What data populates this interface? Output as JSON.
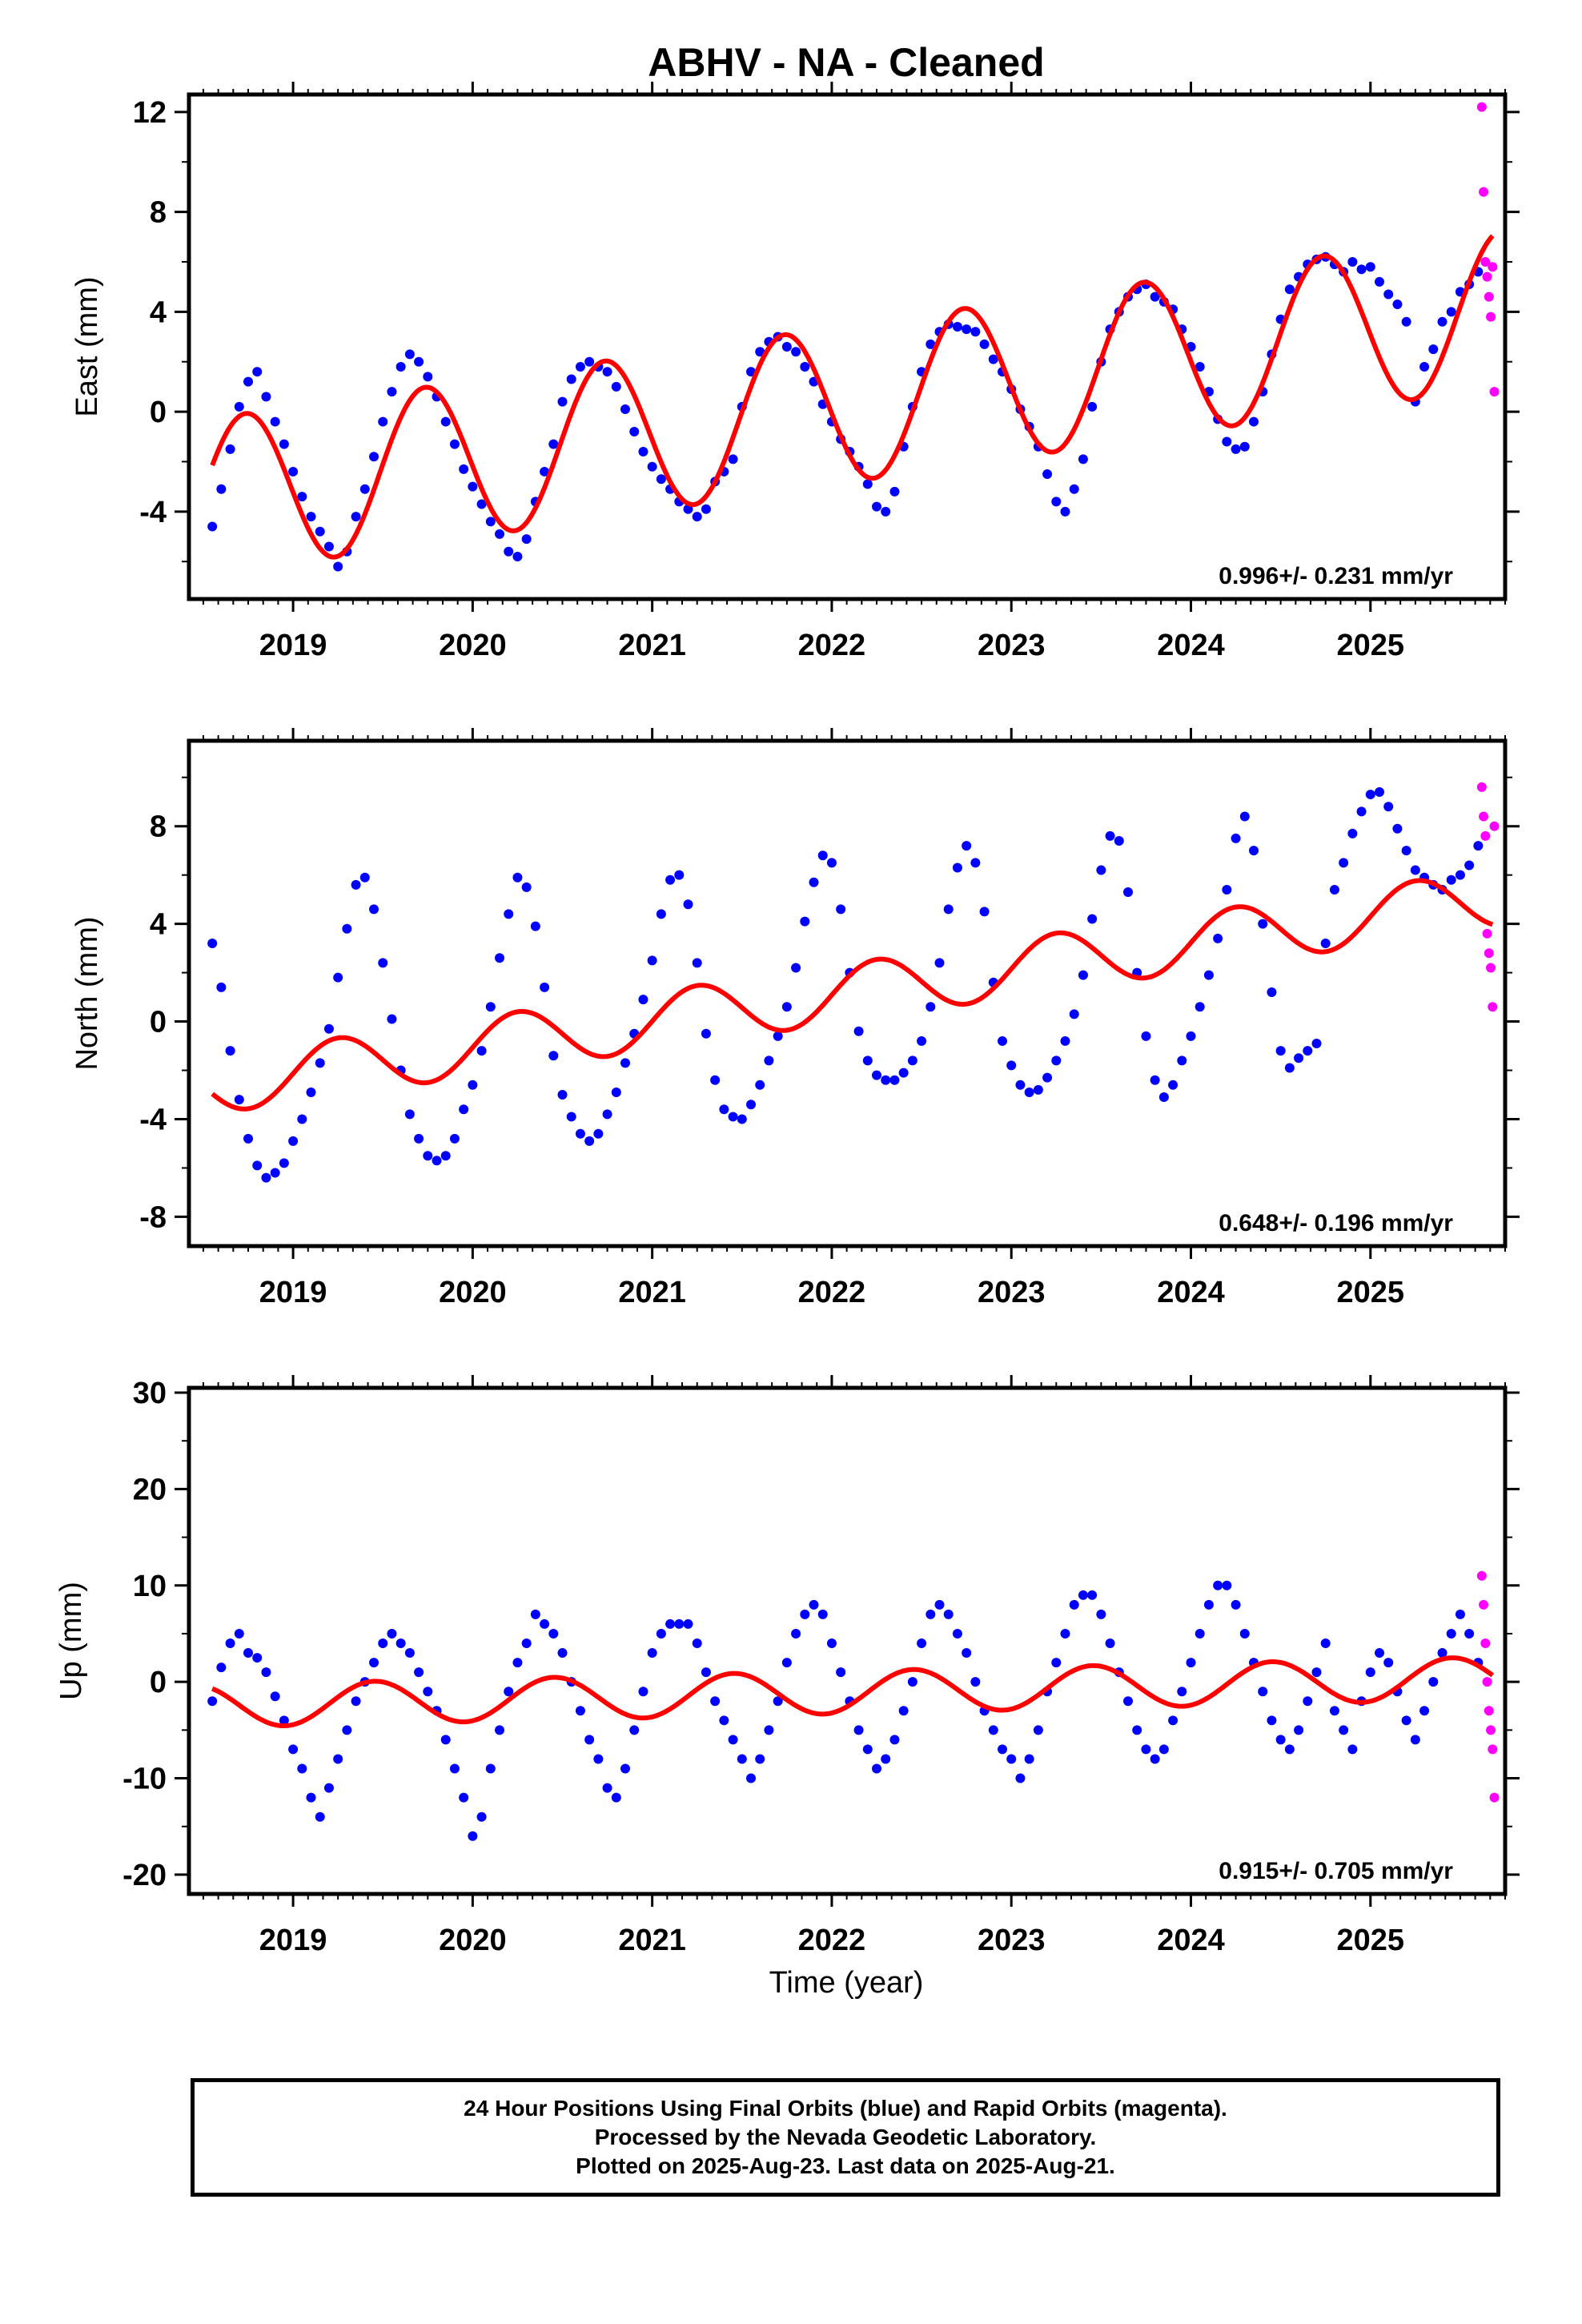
{
  "title": "ABHV  - NA - Cleaned",
  "xlabel": "Time (year)",
  "footer": {
    "line1": "24 Hour Positions Using Final Orbits (blue) and Rapid Orbits (magenta).",
    "line2": "Processed by the Nevada Geodetic Laboratory.",
    "line3": "Plotted on 2025-Aug-23. Last data on 2025-Aug-21."
  },
  "colors": {
    "final": "#0000ff",
    "rapid": "#ff00ff",
    "fit": "#ff0000",
    "axis": "#000000"
  },
  "chart_data": [
    {
      "type": "scatter",
      "ylabel": "East (mm)",
      "rate_label": "0.996+/- 0.231 mm/yr",
      "xlim": [
        2018.42,
        2025.75
      ],
      "ylim": [
        -7.5,
        12.7
      ],
      "yticks": [
        -4,
        0,
        4,
        8,
        12
      ],
      "xticks": [
        2019,
        2020,
        2021,
        2022,
        2023,
        2024,
        2025
      ],
      "series": [
        {
          "x": [
            2018.55,
            2018.6,
            2018.65,
            2018.7,
            2018.75,
            2018.8,
            2018.85,
            2018.9,
            2018.95,
            2019.0,
            2019.05,
            2019.1,
            2019.15,
            2019.2,
            2019.25,
            2019.3,
            2019.35,
            2019.4,
            2019.45,
            2019.5,
            2019.55,
            2019.6,
            2019.65,
            2019.7,
            2019.75,
            2019.8,
            2019.85,
            2019.9,
            2019.95,
            2020.0,
            2020.05,
            2020.1,
            2020.15,
            2020.2,
            2020.25,
            2020.3,
            2020.35,
            2020.4,
            2020.45,
            2020.5,
            2020.55,
            2020.6,
            2020.65,
            2020.7,
            2020.75,
            2020.8,
            2020.85,
            2020.9,
            2020.95,
            2021.0,
            2021.05,
            2021.1,
            2021.15,
            2021.2,
            2021.25,
            2021.3,
            2021.35,
            2021.4,
            2021.45,
            2021.5,
            2021.55,
            2021.6,
            2021.65,
            2021.7,
            2021.75,
            2021.8,
            2021.85,
            2021.9,
            2021.95,
            2022.0,
            2022.05,
            2022.1,
            2022.15,
            2022.2,
            2022.25,
            2022.3,
            2022.35,
            2022.4,
            2022.45,
            2022.5,
            2022.55,
            2022.6,
            2022.65,
            2022.7,
            2022.75,
            2022.8,
            2022.85,
            2022.9,
            2022.95,
            2023.0,
            2023.05,
            2023.1,
            2023.15,
            2023.2,
            2023.25,
            2023.3,
            2023.35,
            2023.4,
            2023.45,
            2023.5,
            2023.55,
            2023.6,
            2023.65,
            2023.7,
            2023.75,
            2023.8,
            2023.85,
            2023.9,
            2023.95,
            2024.0,
            2024.05,
            2024.1,
            2024.15,
            2024.2,
            2024.25,
            2024.3,
            2024.35,
            2024.4,
            2024.45,
            2024.5,
            2024.55,
            2024.6,
            2024.65,
            2024.7,
            2024.75,
            2024.8,
            2024.85,
            2024.9,
            2024.95,
            2025.0,
            2025.05,
            2025.1,
            2025.15,
            2025.2,
            2025.25,
            2025.3,
            2025.35,
            2025.4,
            2025.45,
            2025.5,
            2025.55,
            2025.6
          ],
          "y": [
            -4.6,
            -3.1,
            -1.5,
            0.2,
            1.2,
            1.6,
            0.6,
            -0.4,
            -1.3,
            -2.4,
            -3.4,
            -4.2,
            -4.8,
            -5.4,
            -6.2,
            -5.6,
            -4.2,
            -3.1,
            -1.8,
            -0.4,
            0.8,
            1.8,
            2.3,
            2.0,
            1.4,
            0.6,
            -0.4,
            -1.3,
            -2.3,
            -3.0,
            -3.7,
            -4.4,
            -4.9,
            -5.6,
            -5.8,
            -5.1,
            -3.6,
            -2.4,
            -1.3,
            0.4,
            1.3,
            1.8,
            2.0,
            1.8,
            1.6,
            1.0,
            0.1,
            -0.8,
            -1.6,
            -2.2,
            -2.7,
            -3.1,
            -3.6,
            -3.9,
            -4.2,
            -3.9,
            -2.8,
            -2.4,
            -1.9,
            0.2,
            1.6,
            2.4,
            2.8,
            3.0,
            2.6,
            2.4,
            1.8,
            1.2,
            0.3,
            -0.4,
            -1.1,
            -1.6,
            -2.2,
            -2.9,
            -3.8,
            -4.0,
            -3.2,
            -1.4,
            0.2,
            1.6,
            2.7,
            3.2,
            3.5,
            3.4,
            3.3,
            3.2,
            2.7,
            2.1,
            1.6,
            0.9,
            0.1,
            -0.6,
            -1.4,
            -2.5,
            -3.6,
            -4.0,
            -3.1,
            -1.9,
            0.2,
            2.0,
            3.3,
            4.0,
            4.6,
            4.9,
            5.1,
            4.6,
            4.4,
            4.1,
            3.3,
            2.6,
            1.8,
            0.8,
            -0.3,
            -1.2,
            -1.5,
            -1.4,
            -0.4,
            0.8,
            2.3,
            3.7,
            4.9,
            5.4,
            5.9,
            6.1,
            6.2,
            5.9,
            5.6,
            6.0,
            5.7,
            5.8,
            5.2,
            4.7,
            4.3,
            3.6,
            0.4,
            1.8,
            2.5,
            3.6,
            4.0,
            4.8,
            5.1,
            5.6
          ]
        },
        {
          "x": [
            2025.62,
            2025.63,
            2025.64,
            2025.65,
            2025.66,
            2025.67,
            2025.68,
            2025.69
          ],
          "y": [
            12.2,
            8.8,
            6.0,
            5.4,
            4.6,
            3.8,
            5.8,
            0.8
          ]
        }
      ]
    },
    {
      "type": "scatter",
      "ylabel": "North (mm)",
      "rate_label": "0.648+/- 0.196 mm/yr",
      "xlim": [
        2018.42,
        2025.75
      ],
      "ylim": [
        -9.2,
        11.5
      ],
      "yticks": [
        -8,
        -4,
        0,
        4,
        8
      ],
      "xticks": [
        2019,
        2020,
        2021,
        2022,
        2023,
        2024,
        2025
      ],
      "series": [
        {
          "x": [
            2018.55,
            2018.6,
            2018.65,
            2018.7,
            2018.75,
            2018.8,
            2018.85,
            2018.9,
            2018.95,
            2019.0,
            2019.05,
            2019.1,
            2019.15,
            2019.2,
            2019.25,
            2019.3,
            2019.35,
            2019.4,
            2019.45,
            2019.5,
            2019.55,
            2019.6,
            2019.65,
            2019.7,
            2019.75,
            2019.8,
            2019.85,
            2019.9,
            2019.95,
            2020.0,
            2020.05,
            2020.1,
            2020.15,
            2020.2,
            2020.25,
            2020.3,
            2020.35,
            2020.4,
            2020.45,
            2020.5,
            2020.55,
            2020.6,
            2020.65,
            2020.7,
            2020.75,
            2020.8,
            2020.85,
            2020.9,
            2020.95,
            2021.0,
            2021.05,
            2021.1,
            2021.15,
            2021.2,
            2021.25,
            2021.3,
            2021.35,
            2021.4,
            2021.45,
            2021.5,
            2021.55,
            2021.6,
            2021.65,
            2021.7,
            2021.75,
            2021.8,
            2021.85,
            2021.9,
            2021.95,
            2022.0,
            2022.05,
            2022.1,
            2022.15,
            2022.2,
            2022.25,
            2022.3,
            2022.35,
            2022.4,
            2022.45,
            2022.5,
            2022.55,
            2022.6,
            2022.65,
            2022.7,
            2022.75,
            2022.8,
            2022.85,
            2022.9,
            2022.95,
            2023.0,
            2023.05,
            2023.1,
            2023.15,
            2023.2,
            2023.25,
            2023.3,
            2023.35,
            2023.4,
            2023.45,
            2023.5,
            2023.55,
            2023.6,
            2023.65,
            2023.7,
            2023.75,
            2023.8,
            2023.85,
            2023.9,
            2023.95,
            2024.0,
            2024.05,
            2024.1,
            2024.15,
            2024.2,
            2024.25,
            2024.3,
            2024.35,
            2024.4,
            2024.45,
            2024.5,
            2024.55,
            2024.6,
            2024.65,
            2024.7,
            2024.75,
            2024.8,
            2024.85,
            2024.9,
            2024.95,
            2025.0,
            2025.05,
            2025.1,
            2025.15,
            2025.2,
            2025.25,
            2025.3,
            2025.35,
            2025.4,
            2025.45,
            2025.5,
            2025.55,
            2025.6
          ],
          "y": [
            3.2,
            1.4,
            -1.2,
            -3.2,
            -4.8,
            -5.9,
            -6.4,
            -6.2,
            -5.8,
            -4.9,
            -4.0,
            -2.9,
            -1.7,
            -0.3,
            1.8,
            3.8,
            5.6,
            5.9,
            4.6,
            2.4,
            0.1,
            -2.0,
            -3.8,
            -4.8,
            -5.5,
            -5.7,
            -5.5,
            -4.8,
            -3.6,
            -2.6,
            -1.2,
            0.6,
            2.6,
            4.4,
            5.9,
            5.5,
            3.9,
            1.4,
            -1.4,
            -3.0,
            -3.9,
            -4.6,
            -4.9,
            -4.6,
            -3.8,
            -2.9,
            -1.7,
            -0.5,
            0.9,
            2.5,
            4.4,
            5.8,
            6.0,
            4.8,
            2.4,
            -0.5,
            -2.4,
            -3.6,
            -3.9,
            -4.0,
            -3.4,
            -2.6,
            -1.6,
            -0.6,
            0.6,
            2.2,
            4.1,
            5.7,
            6.8,
            6.5,
            4.6,
            2.0,
            -0.4,
            -1.6,
            -2.2,
            -2.4,
            -2.4,
            -2.1,
            -1.6,
            -0.8,
            0.6,
            2.4,
            4.6,
            6.3,
            7.2,
            6.5,
            4.5,
            1.6,
            -0.8,
            -1.8,
            -2.6,
            -2.9,
            -2.8,
            -2.3,
            -1.6,
            -0.8,
            0.3,
            1.9,
            4.2,
            6.2,
            7.6,
            7.4,
            5.3,
            2.0,
            -0.6,
            -2.4,
            -3.1,
            -2.6,
            -1.6,
            -0.6,
            0.6,
            1.9,
            3.4,
            5.4,
            7.5,
            8.4,
            7.0,
            4.0,
            1.2,
            -1.2,
            -1.9,
            -1.5,
            -1.2,
            -0.9,
            3.2,
            5.4,
            6.5,
            7.7,
            8.6,
            9.3,
            9.4,
            8.8,
            7.9,
            7.0,
            6.2,
            5.9,
            5.6,
            5.4,
            5.8,
            6.0,
            6.4,
            7.2
          ]
        },
        {
          "x": [
            2025.62,
            2025.63,
            2025.64,
            2025.65,
            2025.66,
            2025.67,
            2025.68,
            2025.69
          ],
          "y": [
            9.6,
            8.4,
            7.6,
            3.6,
            2.8,
            2.2,
            0.6,
            8.0
          ]
        }
      ]
    },
    {
      "type": "scatter",
      "ylabel": "Up (mm)",
      "rate_label": "0.915+/- 0.705 mm/yr",
      "xlim": [
        2018.42,
        2025.75
      ],
      "ylim": [
        -22,
        30.5
      ],
      "yticks": [
        -20,
        -10,
        0,
        10,
        20,
        30
      ],
      "xticks": [
        2019,
        2020,
        2021,
        2022,
        2023,
        2024,
        2025
      ],
      "series": [
        {
          "x": [
            2018.55,
            2018.6,
            2018.65,
            2018.7,
            2018.75,
            2018.8,
            2018.85,
            2018.9,
            2018.95,
            2019.0,
            2019.05,
            2019.1,
            2019.15,
            2019.2,
            2019.25,
            2019.3,
            2019.35,
            2019.4,
            2019.45,
            2019.5,
            2019.55,
            2019.6,
            2019.65,
            2019.7,
            2019.75,
            2019.8,
            2019.85,
            2019.9,
            2019.95,
            2020.0,
            2020.05,
            2020.1,
            2020.15,
            2020.2,
            2020.25,
            2020.3,
            2020.35,
            2020.4,
            2020.45,
            2020.5,
            2020.55,
            2020.6,
            2020.65,
            2020.7,
            2020.75,
            2020.8,
            2020.85,
            2020.9,
            2020.95,
            2021.0,
            2021.05,
            2021.1,
            2021.15,
            2021.2,
            2021.25,
            2021.3,
            2021.35,
            2021.4,
            2021.45,
            2021.5,
            2021.55,
            2021.6,
            2021.65,
            2021.7,
            2021.75,
            2021.8,
            2021.85,
            2021.9,
            2021.95,
            2022.0,
            2022.05,
            2022.1,
            2022.15,
            2022.2,
            2022.25,
            2022.3,
            2022.35,
            2022.4,
            2022.45,
            2022.5,
            2022.55,
            2022.6,
            2022.65,
            2022.7,
            2022.75,
            2022.8,
            2022.85,
            2022.9,
            2022.95,
            2023.0,
            2023.05,
            2023.1,
            2023.15,
            2023.2,
            2023.25,
            2023.3,
            2023.35,
            2023.4,
            2023.45,
            2023.5,
            2023.55,
            2023.6,
            2023.65,
            2023.7,
            2023.75,
            2023.8,
            2023.85,
            2023.9,
            2023.95,
            2024.0,
            2024.05,
            2024.1,
            2024.15,
            2024.2,
            2024.25,
            2024.3,
            2024.35,
            2024.4,
            2024.45,
            2024.5,
            2024.55,
            2024.6,
            2024.65,
            2024.7,
            2024.75,
            2024.8,
            2024.85,
            2024.9,
            2024.95,
            2025.0,
            2025.05,
            2025.1,
            2025.15,
            2025.2,
            2025.25,
            2025.3,
            2025.35,
            2025.4,
            2025.45,
            2025.5,
            2025.55,
            2025.6
          ],
          "y": [
            -2.0,
            1.5,
            4.0,
            5.0,
            3.0,
            2.5,
            1.0,
            -1.5,
            -4.0,
            -7.0,
            -9.0,
            -12.0,
            -14.0,
            -11.0,
            -8.0,
            -5.0,
            -2.0,
            0.0,
            2.0,
            4.0,
            5.0,
            4.0,
            3.0,
            1.0,
            -1.0,
            -3.0,
            -6.0,
            -9.0,
            -12.0,
            -16.0,
            -14.0,
            -9.0,
            -5.0,
            -1.0,
            2.0,
            4.0,
            7.0,
            6.0,
            5.0,
            3.0,
            0.0,
            -3.0,
            -6.0,
            -8.0,
            -11.0,
            -12.0,
            -9.0,
            -5.0,
            -1.0,
            3.0,
            5.0,
            6.0,
            6.0,
            6.0,
            4.0,
            1.0,
            -2.0,
            -4.0,
            -6.0,
            -8.0,
            -10.0,
            -8.0,
            -5.0,
            -2.0,
            2.0,
            5.0,
            7.0,
            8.0,
            7.0,
            4.0,
            1.0,
            -2.0,
            -5.0,
            -7.0,
            -9.0,
            -8.0,
            -6.0,
            -3.0,
            0.0,
            4.0,
            7.0,
            8.0,
            7.0,
            5.0,
            3.0,
            0.0,
            -3.0,
            -5.0,
            -7.0,
            -8.0,
            -10.0,
            -8.0,
            -5.0,
            -1.0,
            2.0,
            5.0,
            8.0,
            9.0,
            9.0,
            7.0,
            4.0,
            1.0,
            -2.0,
            -5.0,
            -7.0,
            -8.0,
            -7.0,
            -4.0,
            -1.0,
            2.0,
            5.0,
            8.0,
            10.0,
            10.0,
            8.0,
            5.0,
            2.0,
            -1.0,
            -4.0,
            -6.0,
            -7.0,
            -5.0,
            -2.0,
            1.0,
            4.0,
            -3.0,
            -5.0,
            -7.0,
            -2.0,
            1.0,
            3.0,
            2.0,
            -1.0,
            -4.0,
            -6.0,
            -3.0,
            0.0,
            3.0,
            5.0,
            7.0,
            5.0,
            2.0
          ]
        },
        {
          "x": [
            2025.62,
            2025.63,
            2025.64,
            2025.65,
            2025.66,
            2025.67,
            2025.68,
            2025.69
          ],
          "y": [
            11.0,
            8.0,
            4.0,
            0.0,
            -3.0,
            -5.0,
            -7.0,
            -12.0
          ]
        }
      ]
    }
  ]
}
